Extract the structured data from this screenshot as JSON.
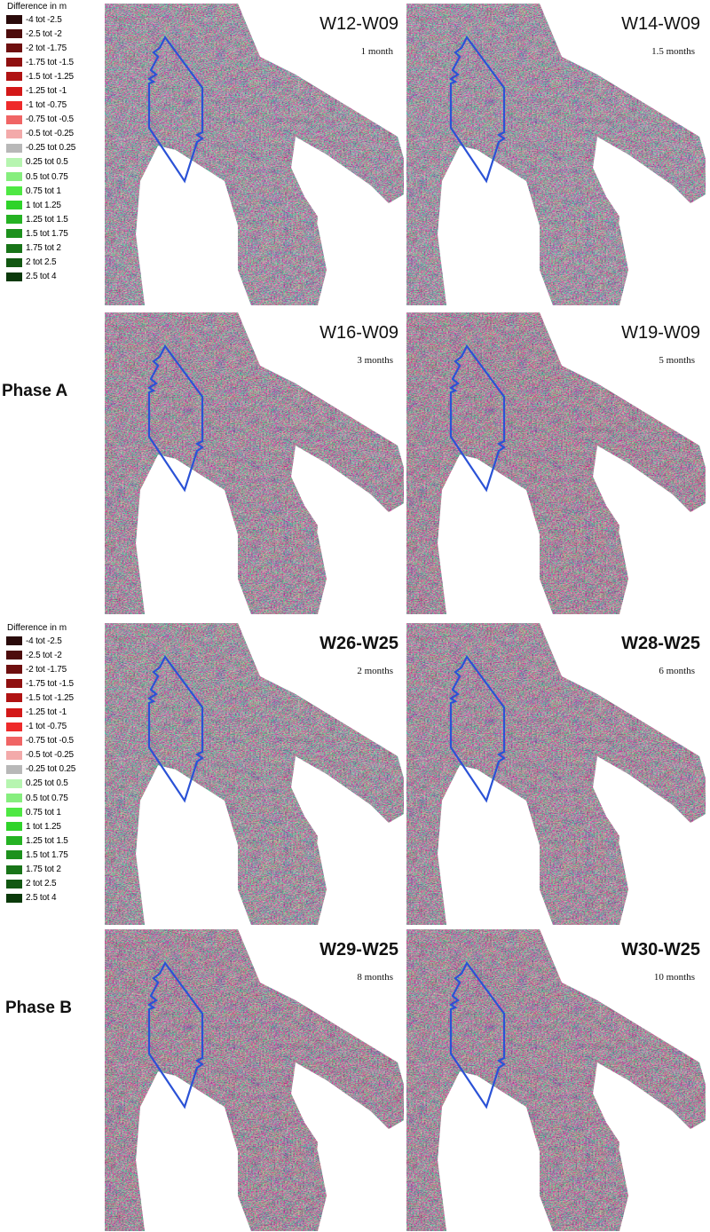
{
  "legend": {
    "title": "Difference in m",
    "items": [
      {
        "label": "-4 tot -2.5",
        "color": "#2a0a0a"
      },
      {
        "label": "-2.5 tot -2",
        "color": "#4d0c0c"
      },
      {
        "label": "-2 tot -1.75",
        "color": "#6e0f0f"
      },
      {
        "label": "-1.75 tot -1.5",
        "color": "#8f1010"
      },
      {
        "label": "-1.5 tot -1.25",
        "color": "#b01313"
      },
      {
        "label": "-1.25 tot -1",
        "color": "#d31818"
      },
      {
        "label": "-1 tot -0.75",
        "color": "#ee2a2a"
      },
      {
        "label": "-0.75 tot -0.5",
        "color": "#f06565"
      },
      {
        "label": "-0.5 tot -0.25",
        "color": "#f3aaaa"
      },
      {
        "label": "-0.25 tot 0.25",
        "color": "#b8b8b8"
      },
      {
        "label": "0.25 tot 0.5",
        "color": "#b6f5b0"
      },
      {
        "label": "0.5 tot 0.75",
        "color": "#86ee7e"
      },
      {
        "label": "0.75 tot 1",
        "color": "#4ee843"
      },
      {
        "label": "1 tot 1.25",
        "color": "#2fd32a"
      },
      {
        "label": "1.25 tot 1.5",
        "color": "#25b223"
      },
      {
        "label": "1.5 tot 1.75",
        "color": "#1d911d"
      },
      {
        "label": "1.75 tot 2",
        "color": "#187418"
      },
      {
        "label": "2 tot 2.5",
        "color": "#125812"
      },
      {
        "label": "2.5 tot 4",
        "color": "#0b3a0b"
      }
    ]
  },
  "phases": {
    "a": "Phase A",
    "b": "Phase B"
  },
  "panels": [
    {
      "code": "W12-W09",
      "duration": "1 month"
    },
    {
      "code": "W14-W09",
      "duration": "1.5 months"
    },
    {
      "code": "W16-W09",
      "duration": "3 months"
    },
    {
      "code": "W19-W09",
      "duration": "5 months"
    },
    {
      "code": "W26-W25",
      "duration": "2 months"
    },
    {
      "code": "W28-W25",
      "duration": "6 months"
    },
    {
      "code": "W29-W25",
      "duration": "8 months"
    },
    {
      "code": "W30-W25",
      "duration": "10 months"
    }
  ]
}
